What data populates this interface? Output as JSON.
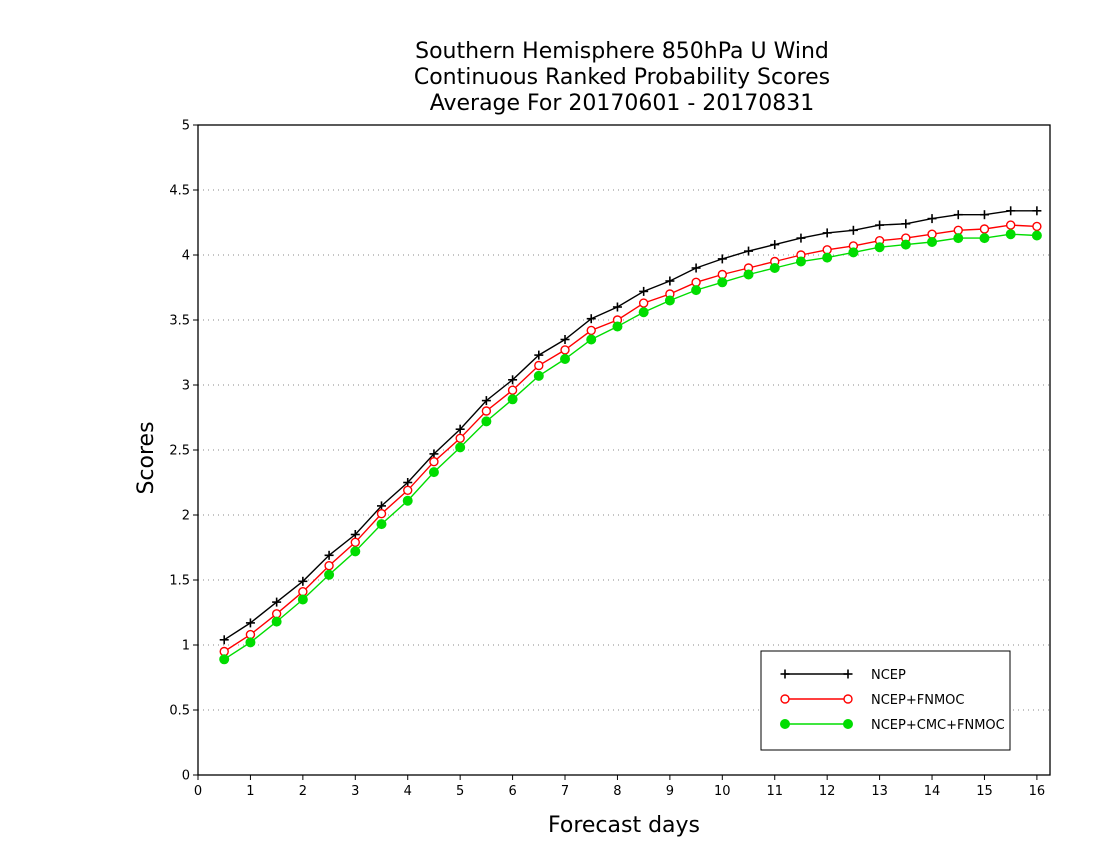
{
  "chart_data": {
    "type": "line",
    "title": [
      "Southern Hemisphere 850hPa U Wind",
      "Continuous Ranked Probability Scores",
      "Average For 20170601 - 20170831"
    ],
    "xlabel": "Forecast days",
    "ylabel": "Scores",
    "xlim": [
      0,
      16.25
    ],
    "ylim": [
      0,
      5
    ],
    "xticks": [
      "0",
      "1",
      "2",
      "3",
      "4",
      "5",
      "6",
      "7",
      "8",
      "9",
      "10",
      "11",
      "12",
      "13",
      "14",
      "15",
      "16"
    ],
    "yticks": [
      "0",
      "0.5",
      "1",
      "1.5",
      "2",
      "2.5",
      "3",
      "3.5",
      "4",
      "4.5",
      "5"
    ],
    "grid": true,
    "legend_position": "bottom-right",
    "x": [
      0.5,
      1,
      1.5,
      2,
      2.5,
      3,
      3.5,
      4,
      4.5,
      5,
      5.5,
      6,
      6.5,
      7,
      7.5,
      8,
      8.5,
      9,
      9.5,
      10,
      10.5,
      11,
      11.5,
      12,
      12.5,
      13,
      13.5,
      14,
      14.5,
      15,
      15.5,
      16
    ],
    "series": [
      {
        "name": "NCEP",
        "color": "#000000",
        "marker": "plus",
        "values": [
          1.04,
          1.17,
          1.33,
          1.49,
          1.69,
          1.85,
          2.07,
          2.25,
          2.47,
          2.66,
          2.88,
          3.04,
          3.23,
          3.35,
          3.51,
          3.6,
          3.72,
          3.8,
          3.9,
          3.97,
          4.03,
          4.08,
          4.13,
          4.17,
          4.19,
          4.23,
          4.24,
          4.28,
          4.31,
          4.31,
          4.34,
          4.34
        ]
      },
      {
        "name": "NCEP+FNMOC",
        "color": "#ff0000",
        "marker": "open-circle",
        "values": [
          0.95,
          1.08,
          1.24,
          1.41,
          1.61,
          1.79,
          2.01,
          2.19,
          2.41,
          2.59,
          2.8,
          2.96,
          3.15,
          3.27,
          3.42,
          3.5,
          3.63,
          3.7,
          3.79,
          3.85,
          3.9,
          3.95,
          4.0,
          4.04,
          4.07,
          4.11,
          4.13,
          4.16,
          4.19,
          4.2,
          4.23,
          4.22
        ]
      },
      {
        "name": "NCEP+CMC+FNMOC",
        "color": "#00dd00",
        "marker": "filled-circle",
        "values": [
          0.89,
          1.02,
          1.18,
          1.35,
          1.54,
          1.72,
          1.93,
          2.11,
          2.33,
          2.52,
          2.72,
          2.89,
          3.07,
          3.2,
          3.35,
          3.45,
          3.56,
          3.65,
          3.73,
          3.79,
          3.85,
          3.9,
          3.95,
          3.98,
          4.02,
          4.06,
          4.08,
          4.1,
          4.13,
          4.13,
          4.16,
          4.15
        ]
      }
    ]
  }
}
